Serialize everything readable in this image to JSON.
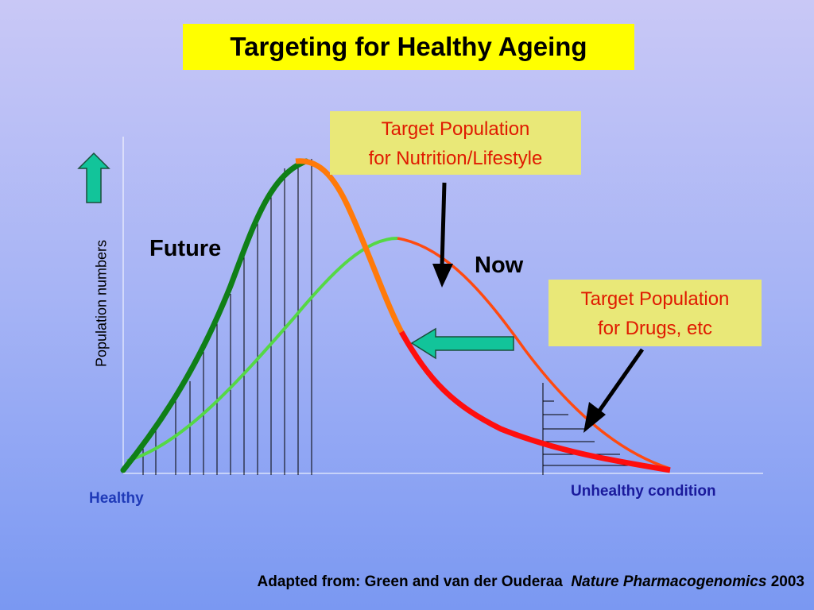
{
  "title": "Targeting for Healthy Ageing",
  "callouts": {
    "nutrition": [
      "Target Population",
      "for Nutrition/Lifestyle"
    ],
    "drugs": [
      "Target Population",
      "for Drugs, etc"
    ]
  },
  "curve_labels": {
    "future": "Future",
    "now": "Now"
  },
  "axis": {
    "ylabel": "Population numbers",
    "x_left": "Healthy",
    "x_right": "Unhealthy condition"
  },
  "citation": {
    "prefix": "Adapted from: Green  and van der Ouderaa",
    "journal": "Nature Pharmacogenomics",
    "year": "2003"
  },
  "colors": {
    "title_bg": "#ffff00",
    "callout_bg": "#e9e878",
    "callout_text": "#e01a00",
    "future_curve": "#0f7f17",
    "now_curve": "#55d845",
    "orange": "#ff7a0a",
    "red": "#ff0e0e",
    "arrow_teal": "#12c49a"
  },
  "icons": [
    "up-arrow-icon",
    "left-arrow-icon",
    "down-arrow-icon",
    "diagonal-arrow-icon"
  ]
}
